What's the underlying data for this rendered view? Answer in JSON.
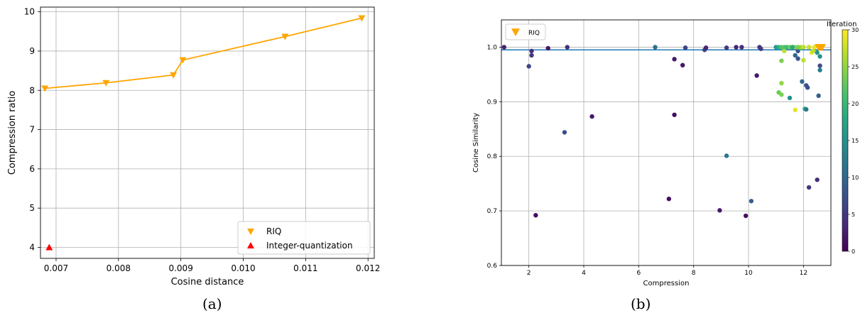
{
  "captions": {
    "a": "(a)",
    "b": "(b)"
  },
  "chart_data": [
    {
      "type": "line",
      "xlabel": "Cosine distance",
      "ylabel": "Compression ratio",
      "xlim": [
        0.00675,
        0.0121
      ],
      "ylim": [
        3.72,
        10.12
      ],
      "xticks": [
        "0.007",
        "0.008",
        "0.009",
        "0.010",
        "0.011",
        "0.012"
      ],
      "xtick_values": [
        0.007,
        0.008,
        0.009,
        0.01,
        0.011,
        0.012
      ],
      "yticks": [
        "4",
        "5",
        "6",
        "7",
        "8",
        "9",
        "10"
      ],
      "ytick_values": [
        4,
        5,
        6,
        7,
        8,
        9,
        10
      ],
      "grid": true,
      "legend_position": "bottom-right",
      "series": [
        {
          "name": "RIQ",
          "marker": "triangle-down",
          "color": "#ffa500",
          "connected": true,
          "x": [
            0.00682,
            0.0078,
            0.00888,
            0.00903,
            0.01067,
            0.0119
          ],
          "y": [
            8.05,
            8.19,
            8.39,
            8.77,
            9.37,
            9.84
          ]
        },
        {
          "name": "Integer-quantization",
          "marker": "triangle-up",
          "color": "#ff0000",
          "connected": false,
          "x": [
            0.00689
          ],
          "y": [
            4.0
          ]
        }
      ]
    },
    {
      "type": "scatter",
      "xlabel": "Compression",
      "ylabel": "Cosine Similarity",
      "xlim": [
        1.0,
        13.0
      ],
      "ylim": [
        0.6,
        1.05
      ],
      "xticks": [
        "2",
        "4",
        "6",
        "8",
        "10",
        "12"
      ],
      "xtick_values": [
        2,
        4,
        6,
        8,
        10,
        12
      ],
      "yticks": [
        "0.6",
        "0.7",
        "0.8",
        "0.9",
        "1.0"
      ],
      "ytick_values": [
        0.6,
        0.7,
        0.8,
        0.9,
        1.0
      ],
      "grid": true,
      "legend_position": "top-left",
      "legend": [
        {
          "name": "RIQ",
          "marker": "triangle-down",
          "color": "#ffa500"
        }
      ],
      "reference_line": {
        "y": 0.995,
        "color": "#1f77b4"
      },
      "colorbar": {
        "label": "Iteration",
        "ticks": [
          "0",
          "5",
          "10",
          "15",
          "20",
          "25",
          "30"
        ],
        "tick_values": [
          0,
          5,
          10,
          15,
          20,
          25,
          30
        ],
        "range": [
          0,
          30
        ],
        "colormap": "viridis"
      },
      "riq_points": {
        "x": [
          12.55,
          12.62,
          12.68
        ],
        "y": [
          1.0,
          1.0,
          1.0
        ]
      },
      "points": [
        [
          1.1,
          1.0,
          3
        ],
        [
          2.0,
          0.965,
          6
        ],
        [
          2.1,
          0.993,
          4
        ],
        [
          2.1,
          0.985,
          5
        ],
        [
          2.25,
          0.692,
          1
        ],
        [
          2.7,
          0.998,
          2
        ],
        [
          3.3,
          0.844,
          7
        ],
        [
          3.4,
          1.0,
          4
        ],
        [
          4.3,
          0.873,
          2
        ],
        [
          6.6,
          1.0,
          11
        ],
        [
          7.1,
          0.722,
          1
        ],
        [
          7.3,
          0.978,
          2
        ],
        [
          7.3,
          0.876,
          1
        ],
        [
          7.6,
          0.967,
          2
        ],
        [
          7.7,
          0.999,
          6
        ],
        [
          8.4,
          0.995,
          6
        ],
        [
          8.45,
          0.999,
          3
        ],
        [
          8.95,
          0.701,
          2
        ],
        [
          9.2,
          0.999,
          5
        ],
        [
          9.2,
          0.801,
          12
        ],
        [
          9.55,
          1.0,
          3
        ],
        [
          9.75,
          1.0,
          4
        ],
        [
          9.9,
          0.691,
          1
        ],
        [
          10.1,
          0.718,
          9
        ],
        [
          10.3,
          0.948,
          2
        ],
        [
          10.4,
          1.0,
          5
        ],
        [
          10.45,
          0.997,
          5
        ],
        [
          11.0,
          1.0,
          16
        ],
        [
          11.1,
          0.917,
          23
        ],
        [
          11.2,
          0.913,
          24
        ],
        [
          11.2,
          0.934,
          25
        ],
        [
          11.2,
          0.975,
          24
        ],
        [
          11.3,
          0.993,
          27
        ],
        [
          11.4,
          1.0,
          20
        ],
        [
          11.5,
          0.907,
          15
        ],
        [
          11.6,
          1.0,
          22
        ],
        [
          11.7,
          0.885,
          29
        ],
        [
          11.7,
          0.985,
          10
        ],
        [
          11.8,
          0.993,
          8
        ],
        [
          11.8,
          0.979,
          8
        ],
        [
          11.9,
          0.998,
          20
        ],
        [
          11.95,
          0.937,
          10
        ],
        [
          12.0,
          0.976,
          27
        ],
        [
          12.05,
          0.887,
          20
        ],
        [
          12.1,
          0.93,
          8
        ],
        [
          12.1,
          0.886,
          12
        ],
        [
          12.15,
          0.926,
          7
        ],
        [
          12.2,
          0.743,
          5
        ],
        [
          12.2,
          1.0,
          19
        ],
        [
          12.3,
          0.99,
          29
        ],
        [
          12.35,
          0.993,
          27
        ],
        [
          12.5,
          0.757,
          4
        ],
        [
          12.55,
          0.911,
          9
        ],
        [
          12.6,
          0.966,
          7
        ],
        [
          12.6,
          0.958,
          13
        ],
        [
          12.6,
          0.983,
          15
        ],
        [
          12.5,
          0.99,
          16
        ],
        [
          11.1,
          1.0,
          19
        ],
        [
          11.3,
          1.0,
          21
        ],
        [
          11.5,
          1.0,
          23
        ],
        [
          11.7,
          1.0,
          25
        ],
        [
          11.9,
          1.0,
          26
        ],
        [
          12.0,
          1.0,
          27
        ],
        [
          12.2,
          1.0,
          28
        ],
        [
          12.4,
          1.0,
          29
        ],
        [
          11.2,
          1.0,
          22
        ],
        [
          11.6,
          1.0,
          18
        ],
        [
          11.8,
          1.0,
          24
        ]
      ]
    }
  ]
}
